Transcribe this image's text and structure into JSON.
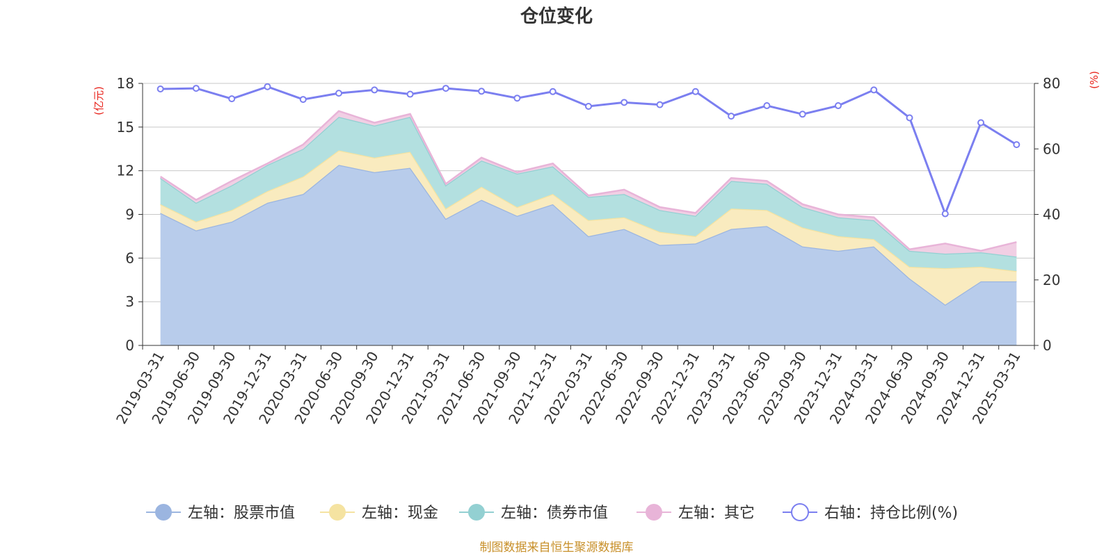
{
  "chart_data": {
    "type": "area",
    "title": "仓位变化",
    "source": "制图数据来自恒生聚源数据库",
    "left_axis": {
      "unit": "(亿元)",
      "min": 0,
      "max": 18,
      "ticks": [
        0,
        3,
        6,
        9,
        12,
        15,
        18
      ]
    },
    "right_axis": {
      "unit": "(%)",
      "min": 0,
      "max": 80,
      "ticks": [
        0,
        20,
        40,
        60,
        80
      ]
    },
    "categories": [
      "2019-03-31",
      "2019-06-30",
      "2019-09-30",
      "2019-12-31",
      "2020-03-31",
      "2020-06-30",
      "2020-09-30",
      "2020-12-31",
      "2021-03-31",
      "2021-06-30",
      "2021-09-30",
      "2021-12-31",
      "2022-03-31",
      "2022-06-30",
      "2022-09-30",
      "2022-12-31",
      "2023-03-31",
      "2023-06-30",
      "2023-09-30",
      "2023-12-31",
      "2024-03-31",
      "2024-06-30",
      "2024-09-30",
      "2024-12-31",
      "2025-03-31"
    ],
    "series": [
      {
        "name": "左轴：股票市值",
        "axis": "left",
        "kind": "stack-area",
        "color": "#9bb5e0",
        "fill": "#b8cceb",
        "values": [
          9.1,
          7.9,
          8.5,
          9.8,
          10.4,
          12.4,
          11.9,
          12.2,
          8.7,
          10.0,
          8.9,
          9.7,
          7.5,
          8.0,
          6.9,
          7.0,
          8.0,
          8.2,
          6.8,
          6.5,
          6.8,
          4.6,
          2.8,
          4.4,
          4.4
        ]
      },
      {
        "name": "左轴：现金",
        "axis": "left",
        "kind": "stack-area",
        "color": "#f5e3a1",
        "fill": "#f9ebbf",
        "values": [
          0.6,
          0.6,
          0.8,
          0.8,
          1.2,
          1.0,
          1.0,
          1.1,
          0.7,
          0.9,
          0.6,
          0.7,
          1.1,
          0.8,
          0.9,
          0.5,
          1.4,
          1.1,
          1.3,
          1.0,
          0.5,
          0.8,
          2.5,
          1.0,
          0.7
        ]
      },
      {
        "name": "左轴：债券市值",
        "axis": "left",
        "kind": "stack-area",
        "color": "#93d0d2",
        "fill": "#b3e0e0",
        "values": [
          1.8,
          1.3,
          1.7,
          1.8,
          1.9,
          2.3,
          2.2,
          2.4,
          1.6,
          1.8,
          2.3,
          1.9,
          1.6,
          1.6,
          1.5,
          1.4,
          1.9,
          1.8,
          1.4,
          1.3,
          1.3,
          1.1,
          1.0,
          1.0,
          1.0
        ]
      },
      {
        "name": "左轴：其它",
        "axis": "left",
        "kind": "stack-area",
        "color": "#e8b4d8",
        "fill": "#f1cfe4",
        "values": [
          0.1,
          0.2,
          0.3,
          0.1,
          0.3,
          0.4,
          0.2,
          0.2,
          0.1,
          0.2,
          0.1,
          0.2,
          0.1,
          0.3,
          0.2,
          0.2,
          0.2,
          0.2,
          0.2,
          0.2,
          0.2,
          0.1,
          0.7,
          0.1,
          1.0
        ]
      },
      {
        "name": "右轴：持仓比例(%)",
        "axis": "right",
        "kind": "line",
        "color": "#7b7ff0",
        "values": [
          78.3,
          78.5,
          75.3,
          79.0,
          75.1,
          77.0,
          78.0,
          76.7,
          78.5,
          77.6,
          75.5,
          77.5,
          73.0,
          74.2,
          73.5,
          77.5,
          70.0,
          73.2,
          70.6,
          73.2,
          78.0,
          69.5,
          40.2,
          68.0,
          61.3
        ]
      }
    ]
  }
}
